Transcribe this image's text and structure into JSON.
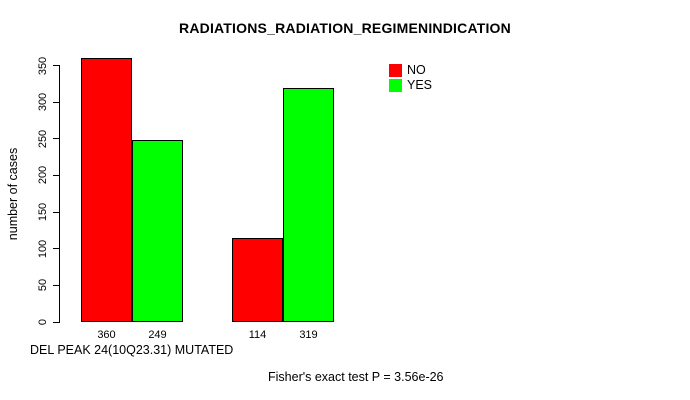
{
  "chart_data": {
    "type": "bar",
    "title": "RADIATIONS_RADIATION_REGIMENINDICATION",
    "ylabel": "number of cases",
    "xlabel": "DEL PEAK 24(10Q23.31) MUTATED",
    "footnote": "Fisher's exact test P = 3.56e-26",
    "yticks": [
      0,
      50,
      100,
      150,
      200,
      250,
      300,
      350
    ],
    "ylim": [
      0,
      374
    ],
    "grid": false,
    "legend_position": "top-right",
    "series": [
      {
        "name": "NO",
        "color": "#ff0000",
        "values": [
          360,
          114
        ]
      },
      {
        "name": "YES",
        "color": "#00ff00",
        "values": [
          249,
          319
        ]
      }
    ],
    "bars": [
      {
        "series": "NO",
        "value": 360,
        "label": "360",
        "color": "#ff0000"
      },
      {
        "series": "YES",
        "value": 249,
        "label": "249",
        "color": "#00ff00"
      },
      {
        "series": "NO",
        "value": 114,
        "label": "114",
        "color": "#ff0000"
      },
      {
        "series": "YES",
        "value": 319,
        "label": "319",
        "color": "#00ff00"
      }
    ],
    "legend": [
      {
        "label": "NO",
        "color": "#ff0000"
      },
      {
        "label": "YES",
        "color": "#00ff00"
      }
    ]
  }
}
